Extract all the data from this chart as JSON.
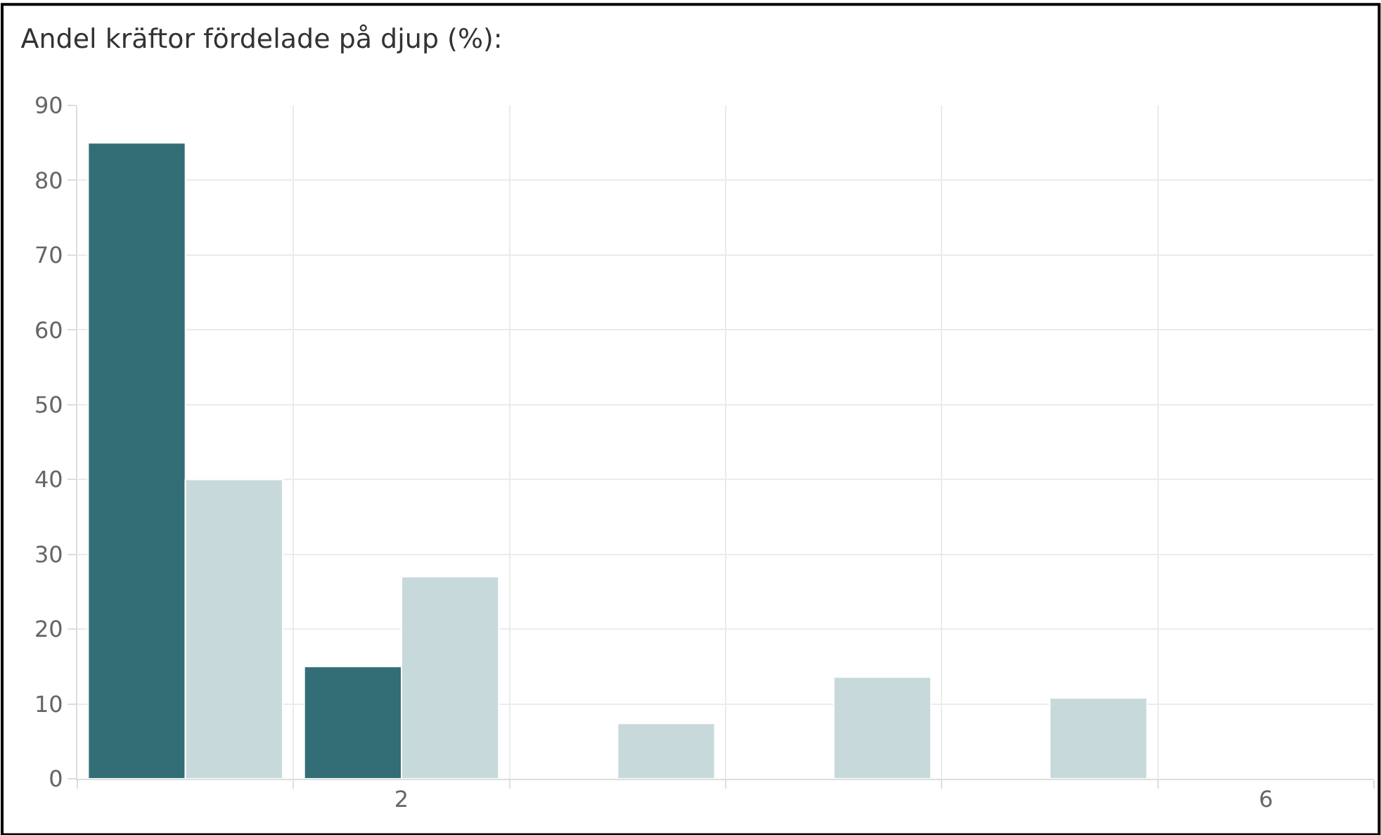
{
  "chart_data": {
    "type": "bar",
    "title": "Andel kräftor fördelade på djup (%):",
    "categories": [
      null,
      "2",
      null,
      null,
      null,
      "6"
    ],
    "series": [
      {
        "color": "#336e77",
        "values": [
          85,
          15,
          null,
          null,
          null,
          null
        ]
      },
      {
        "color": "#c8d9dc",
        "values": [
          40,
          27,
          7.4,
          13.6,
          10.8,
          null
        ]
      }
    ],
    "ylim": [
      0,
      90
    ],
    "yticks": [
      0,
      10,
      20,
      30,
      40,
      50,
      60,
      70,
      80,
      90
    ],
    "grid": true
  }
}
